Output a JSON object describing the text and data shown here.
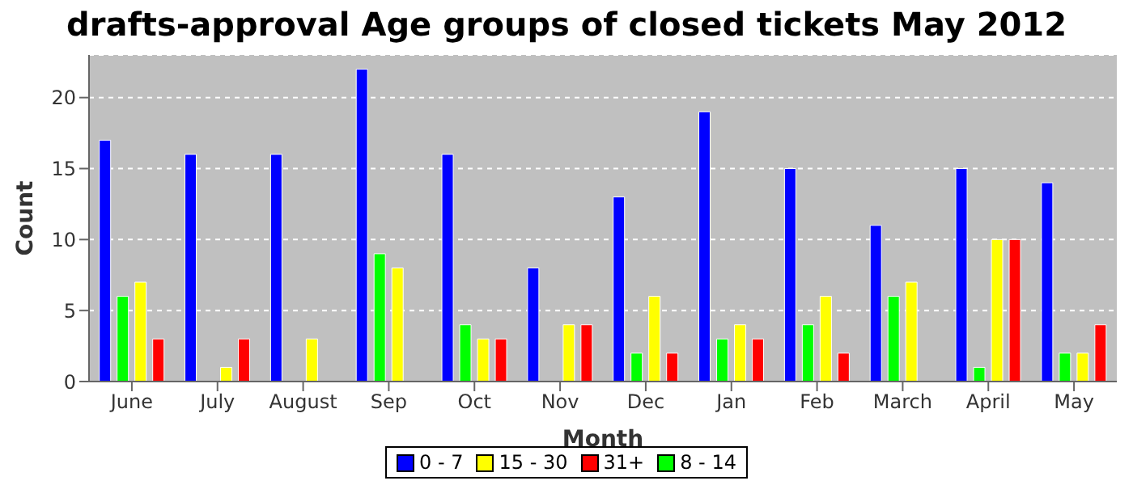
{
  "chart_data": {
    "type": "bar",
    "title": "drafts-approval Age groups of closed tickets May 2012",
    "xlabel": "Month",
    "ylabel": "Count",
    "categories": [
      "June",
      "July",
      "August",
      "Sep",
      "Oct",
      "Nov",
      "Dec",
      "Jan",
      "Feb",
      "March",
      "April",
      "May"
    ],
    "series": [
      {
        "name": "0 - 7",
        "color": "#0000ff",
        "values": [
          17,
          16,
          16,
          22,
          16,
          8,
          13,
          19,
          15,
          11,
          15,
          14
        ]
      },
      {
        "name": "8 - 14",
        "color": "#00ff00",
        "values": [
          6,
          0,
          0,
          9,
          4,
          0,
          2,
          3,
          4,
          6,
          1,
          2
        ]
      },
      {
        "name": "15 - 30",
        "color": "#ffff00",
        "values": [
          7,
          1,
          3,
          8,
          3,
          4,
          6,
          4,
          6,
          7,
          10,
          2
        ]
      },
      {
        "name": "31+",
        "color": "#ff0000",
        "values": [
          3,
          3,
          0,
          0,
          3,
          4,
          2,
          3,
          2,
          0,
          10,
          4
        ]
      }
    ],
    "ylim": [
      0,
      23
    ],
    "yticks": [
      0,
      5,
      10,
      15,
      20
    ],
    "grid": "y",
    "legend": "bottom"
  }
}
